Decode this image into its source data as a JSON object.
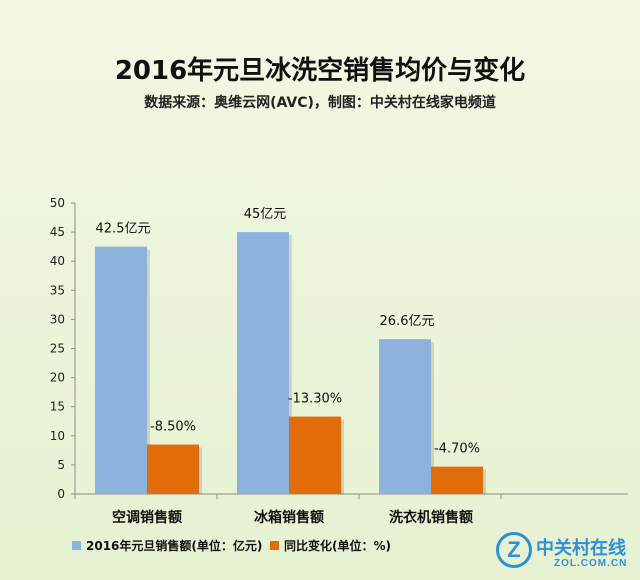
{
  "chart_data": {
    "type": "bar",
    "title": "2016年元旦冰洗空销售均价与变化",
    "subtitle": "数据来源：奥维云网(AVC)，制图：中关村在线家电频道",
    "categories": [
      "空调销售额",
      "冰箱销售额",
      "洗衣机销售额"
    ],
    "series": [
      {
        "name": "2016年元旦销售额(单位：亿元)",
        "values": [
          42.5,
          45,
          26.6
        ],
        "labels": [
          "42.5亿元",
          "45亿元",
          "26.6亿元"
        ],
        "color": "#8eb2de"
      },
      {
        "name": "同比变化(单位：%)",
        "values": [
          -8.5,
          -13.3,
          -4.7
        ],
        "labels": [
          "-8.50%",
          "-13.30%",
          "-4.70%"
        ],
        "color": "#e36c0a"
      }
    ],
    "y_ticks": [
      "0",
      "5",
      "10",
      "15",
      "20",
      "25",
      "30",
      "35",
      "40",
      "45",
      "50"
    ],
    "ylim": [
      0,
      50
    ],
    "grid": false,
    "legend": "bottom-left",
    "note": "Orange bars are drawn at the magnitude of the percentage change."
  },
  "logo": {
    "mark": "Z",
    "name_cn": "中关村在线",
    "name_en": "ZOL.COM.CN"
  }
}
